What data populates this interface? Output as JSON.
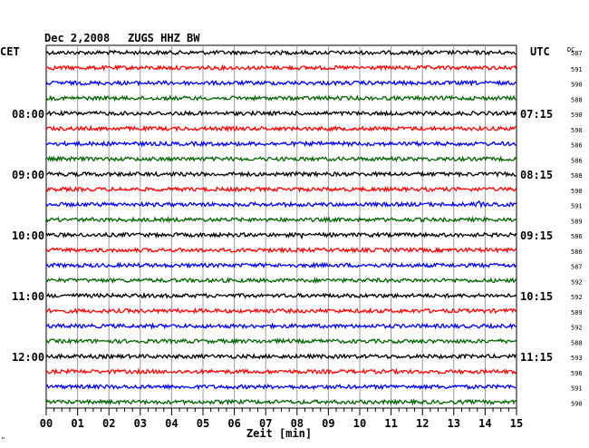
{
  "header": {
    "date": "Dec 2,2008",
    "station": "ZUGS HHZ BW"
  },
  "left_axis_label": "CET",
  "right_axis_label": "UTC",
  "dc_label": "DC",
  "xlabel": "Zeit [min]",
  "footer_mark": "\"",
  "trace_colors": [
    "#000000",
    "#ff0000",
    "#0000ff",
    "#006400"
  ],
  "chart_data": {
    "type": "line",
    "title": "Dec 2,2008   ZUGS HHZ BW",
    "xlabel": "Zeit [min]",
    "xlim": [
      0,
      15
    ],
    "x_ticks": [
      "00",
      "01",
      "02",
      "03",
      "04",
      "05",
      "06",
      "07",
      "08",
      "09",
      "10",
      "11",
      "12",
      "13",
      "14",
      "15"
    ],
    "rows": 24,
    "left_time_labels": [
      {
        "row": 4,
        "label": "08:00"
      },
      {
        "row": 8,
        "label": "09:00"
      },
      {
        "row": 12,
        "label": "10:00"
      },
      {
        "row": 16,
        "label": "11:00"
      },
      {
        "row": 20,
        "label": "12:00"
      }
    ],
    "right_time_labels": [
      {
        "row": 4,
        "label": "07:15"
      },
      {
        "row": 8,
        "label": "08:15"
      },
      {
        "row": 12,
        "label": "09:15"
      },
      {
        "row": 16,
        "label": "10:15"
      },
      {
        "row": 20,
        "label": "11:15"
      }
    ],
    "dc_offsets": [
      587,
      591,
      590,
      588,
      590,
      590,
      586,
      586,
      588,
      590,
      591,
      589,
      586,
      586,
      587,
      592,
      592,
      589,
      592,
      588,
      593,
      596,
      591,
      590
    ],
    "events": [
      {
        "row": 10,
        "minute": 13.6,
        "amplitude": "large"
      },
      {
        "row": 12,
        "minute": 8.1,
        "amplitude": "small"
      },
      {
        "row": 16,
        "minute": 7.0,
        "amplitude": "small"
      }
    ]
  }
}
